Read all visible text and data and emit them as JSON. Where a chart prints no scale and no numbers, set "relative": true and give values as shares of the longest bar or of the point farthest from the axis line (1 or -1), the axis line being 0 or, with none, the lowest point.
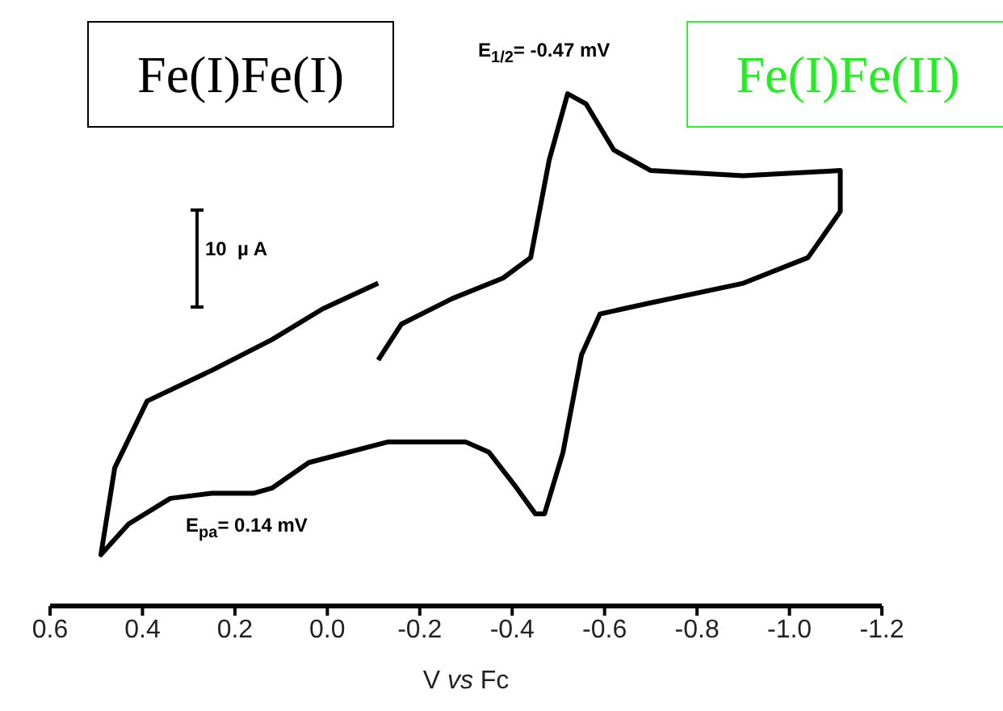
{
  "chart_data": {
    "type": "line",
    "xlabel": "V vs Fc",
    "relative": true,
    "xlim": [
      0.6,
      -1.2
    ],
    "xticks": [
      {
        "value": 0.6,
        "label": "0.6"
      },
      {
        "value": 0.4,
        "label": "0.4"
      },
      {
        "value": 0.2,
        "label": "0.2"
      },
      {
        "value": 0,
        "label": "0.0"
      },
      {
        "value": -0.2,
        "label": "-0.2"
      },
      {
        "value": -0.4,
        "label": "-0.4"
      },
      {
        "value": -0.6,
        "label": "-0.6"
      },
      {
        "value": -0.8,
        "label": "-0.8"
      },
      {
        "value": -1.0,
        "label": "-1.0"
      },
      {
        "value": -1.2,
        "label": "-1.2"
      }
    ],
    "series": [
      {
        "color": "#000000",
        "x": [
          -0.11,
          -0.16,
          -0.27,
          -0.38,
          -0.44,
          -0.48,
          -0.52,
          -0.56,
          -0.62,
          -0.7,
          -0.9,
          -1.11,
          -1.11,
          -1.04,
          -0.9,
          -0.69,
          -0.59,
          -0.55,
          -0.51,
          -0.47,
          -0.45,
          -0.41,
          -0.35,
          -0.3,
          -0.13,
          0.04,
          0.12,
          0.16,
          0.25,
          0.34,
          0.43,
          0.49,
          0.46,
          0.39,
          0.25,
          0.12,
          0.01,
          -0.11
        ],
        "values": [
          0.48,
          0.55,
          0.6,
          0.64,
          0.68,
          0.87,
          1.0,
          0.98,
          0.89,
          0.85,
          0.84,
          0.85,
          0.77,
          0.68,
          0.63,
          0.59,
          0.57,
          0.49,
          0.3,
          0.18,
          0.18,
          0.23,
          0.3,
          0.32,
          0.32,
          0.28,
          0.23,
          0.22,
          0.22,
          0.21,
          0.16,
          0.1,
          0.27,
          0.4,
          0.46,
          0.52,
          0.58,
          0.63
        ]
      }
    ],
    "annotations": [
      "Fe(I)Fe(I)",
      "Fe(I)Fe(II)",
      "E$_{1/2}$= -0.47 mV",
      "E$_{pa}$= 0.14 mV",
      "10  µ A"
    ],
    "grid": false,
    "legend": false,
    "marker": "none",
    "line_style": "solid"
  }
}
